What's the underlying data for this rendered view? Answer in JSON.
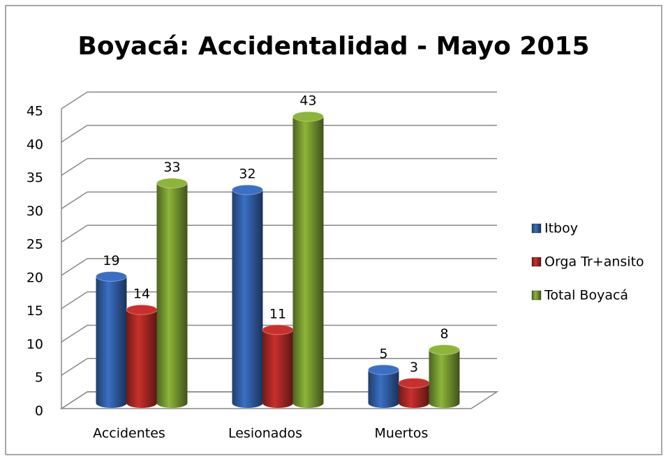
{
  "chart_data": {
    "type": "bar",
    "title": "Boyacá: Accidentalidad - Mayo 2015",
    "categories": [
      "Accidentes",
      "Lesionados",
      "Muertos"
    ],
    "series": [
      {
        "name": "Itboy",
        "color": "#3a6fc4",
        "values": [
          19,
          32,
          5
        ]
      },
      {
        "name": "Orga Tr+ansito",
        "color": "#c9302c",
        "values": [
          14,
          11,
          3
        ]
      },
      {
        "name": "Total Boyacá",
        "color": "#8db53a",
        "values": [
          33,
          43,
          8
        ]
      }
    ],
    "ylim": [
      0,
      45
    ],
    "yticks": [
      0,
      5,
      10,
      15,
      20,
      25,
      30,
      35,
      40,
      45
    ],
    "grid": true,
    "legend": "right"
  }
}
